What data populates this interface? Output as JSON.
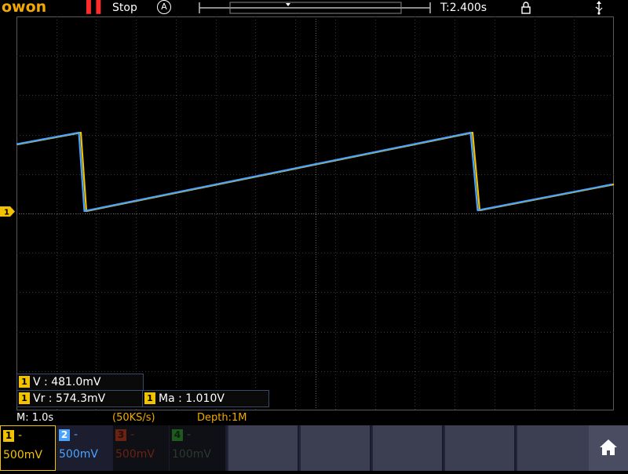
{
  "topbar": {
    "logo_text": "owon",
    "run_icon": "pause-icon",
    "run_status": "Stop",
    "trigger_mode_letter": "A",
    "trigger_time": "T:2.400s",
    "lock_icon": "lock-icon",
    "usb_icon": "usb-icon"
  },
  "channel1_marker": "1",
  "measurements": [
    {
      "channel": "1",
      "label": "V : 481.0mV"
    },
    {
      "channel": "1",
      "label": "Vr : 574.3mV"
    },
    {
      "channel": "1",
      "label": "Ma : 1.010V"
    }
  ],
  "status": {
    "timebase": "M: 1.0s",
    "sample_rate": "(50KS/s)",
    "depth": "Depth:1M"
  },
  "channels": [
    {
      "num": "1",
      "dash": "-",
      "scale": "500mV",
      "color": "#f2c200",
      "active": true
    },
    {
      "num": "2",
      "dash": "-",
      "scale": "500mV",
      "color": "#4aa3ff",
      "active": true
    },
    {
      "num": "3",
      "dash": "-",
      "scale": "500mV",
      "color": "#a0301a",
      "active": false
    },
    {
      "num": "4",
      "dash": "-",
      "scale": "100mV",
      "color": "#2f8a2f",
      "active": false
    }
  ],
  "home_icon": "home-icon",
  "colors": {
    "ch1": "#f2c200",
    "ch2": "#4aa3ff",
    "accent": "#f2a900",
    "grid": "#3a3a3a"
  }
}
